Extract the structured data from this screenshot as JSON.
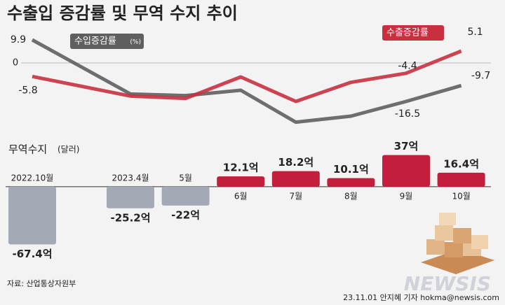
{
  "title": "수출입 증감률 및 무역 수지 추이",
  "source": "자료: 산업통상자원부",
  "credit": "23.11.01 안지혜 기자 hokma@newsis.com",
  "watermark": "NEWSIS",
  "chart_data": [
    {
      "type": "line",
      "ylim": [
        -27,
        15
      ],
      "yticks": [
        0
      ],
      "series": [
        {
          "name": "수입증감률",
          "unit": "(%)",
          "color": "#5f5f5f",
          "values": [
            9.9,
            -13.3,
            -14.0,
            -11.7,
            -25.4,
            -22.8,
            -16.5,
            -9.7
          ],
          "value_labels": [
            "9.9",
            null,
            null,
            null,
            null,
            null,
            "-16.5",
            "-9.7"
          ]
        },
        {
          "name": "수출증감률",
          "color": "#c8303f",
          "values": [
            -5.8,
            -14.2,
            -15.2,
            -6.0,
            -16.5,
            -8.3,
            -4.4,
            5.1
          ],
          "value_labels": [
            "-5.8",
            null,
            null,
            null,
            null,
            null,
            "-4.4",
            "5.1"
          ]
        }
      ]
    },
    {
      "type": "bar",
      "title": "무역수지",
      "subtitle": "(달러)",
      "categories": [
        "2022.10월",
        "2023.4월",
        "5월",
        "6월",
        "7월",
        "8월",
        "9월",
        "10월"
      ],
      "values": [
        -67.4,
        -25.2,
        -22,
        12.1,
        18.2,
        10.1,
        37,
        16.4
      ],
      "value_labels": [
        "-67.4억",
        "-25.2억",
        "-22억",
        "12.1억",
        "18.2억",
        "10.1억",
        "37억",
        "16.4억"
      ],
      "colors": [
        "#a3aab5",
        "#a3aab5",
        "#a3aab5",
        "#c41e3d",
        "#c41e3d",
        "#c41e3d",
        "#c41e3d",
        "#c41e3d"
      ],
      "ylim": [
        -72,
        40
      ],
      "yticks": [
        0
      ]
    }
  ]
}
